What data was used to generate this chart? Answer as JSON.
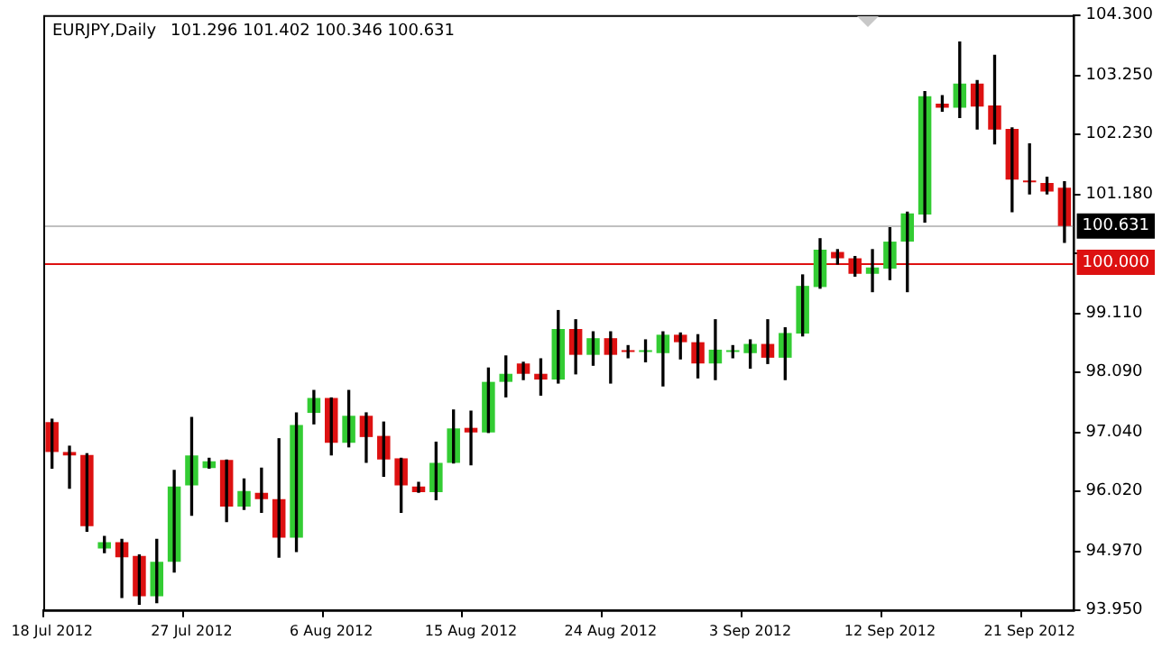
{
  "chart_data": {
    "type": "candlestick",
    "title": "EURJPY,Daily",
    "subtitle": "101.296 101.402 100.346 100.631",
    "categories": [
      "18 Jul 2012",
      null,
      null,
      null,
      null,
      null,
      null,
      null,
      "27 Jul 2012",
      null,
      null,
      null,
      null,
      null,
      null,
      null,
      "6 Aug 2012",
      null,
      null,
      null,
      null,
      null,
      null,
      null,
      "15 Aug 2012",
      null,
      null,
      null,
      null,
      null,
      null,
      null,
      "24 Aug 2012",
      null,
      null,
      null,
      null,
      null,
      null,
      null,
      "3 Sep 2012",
      null,
      null,
      null,
      null,
      null,
      null,
      null,
      "12 Sep 2012",
      null,
      null,
      null,
      null,
      null,
      null,
      null,
      "21 Sep 2012",
      null,
      null
    ],
    "ohlc": [
      [
        97.22,
        97.27,
        96.42,
        96.7
      ],
      [
        96.7,
        96.8,
        96.07,
        96.64
      ],
      [
        96.65,
        96.67,
        95.32,
        95.41
      ],
      [
        95.02,
        95.23,
        94.95,
        95.13
      ],
      [
        95.13,
        95.18,
        94.17,
        94.87
      ],
      [
        94.89,
        94.91,
        94.05,
        94.19
      ],
      [
        94.19,
        95.18,
        94.08,
        94.79
      ],
      [
        94.79,
        96.38,
        94.61,
        96.1
      ],
      [
        96.12,
        97.3,
        95.6,
        96.64
      ],
      [
        96.42,
        96.59,
        96.42,
        96.54
      ],
      [
        96.56,
        96.56,
        95.49,
        95.75
      ],
      [
        95.75,
        96.23,
        95.7,
        96.02
      ],
      [
        95.99,
        96.42,
        95.65,
        95.88
      ],
      [
        95.88,
        96.93,
        94.87,
        95.21
      ],
      [
        95.21,
        97.38,
        94.97,
        97.17
      ],
      [
        97.38,
        97.77,
        97.19,
        97.64
      ],
      [
        97.64,
        97.64,
        96.65,
        96.86
      ],
      [
        96.86,
        97.77,
        96.79,
        97.33
      ],
      [
        97.33,
        97.38,
        96.52,
        96.96
      ],
      [
        96.98,
        97.22,
        96.28,
        96.57
      ],
      [
        96.59,
        96.59,
        95.65,
        96.12
      ],
      [
        96.1,
        96.17,
        96.0,
        96.0
      ],
      [
        96.0,
        96.87,
        95.87,
        96.51
      ],
      [
        96.51,
        97.43,
        96.51,
        97.11
      ],
      [
        97.12,
        97.41,
        96.48,
        97.04
      ],
      [
        97.04,
        98.16,
        97.04,
        97.92
      ],
      [
        97.92,
        98.37,
        97.66,
        98.06
      ],
      [
        98.24,
        98.26,
        97.96,
        98.06
      ],
      [
        98.06,
        98.32,
        97.69,
        97.96
      ],
      [
        97.96,
        99.16,
        97.9,
        98.84
      ],
      [
        98.84,
        99.0,
        98.06,
        98.39
      ],
      [
        98.39,
        98.79,
        98.21,
        98.68
      ],
      [
        98.68,
        98.79,
        97.9,
        98.39
      ],
      [
        98.45,
        98.55,
        98.34,
        98.44
      ],
      [
        98.44,
        98.65,
        98.27,
        98.46
      ],
      [
        98.42,
        98.79,
        97.85,
        98.74
      ],
      [
        98.74,
        98.77,
        98.32,
        98.61
      ],
      [
        98.61,
        98.74,
        97.99,
        98.24
      ],
      [
        98.24,
        99.0,
        97.96,
        98.48
      ],
      [
        98.44,
        98.55,
        98.34,
        98.46
      ],
      [
        98.42,
        98.65,
        98.16,
        98.58
      ],
      [
        98.58,
        99.0,
        98.24,
        98.34
      ],
      [
        98.34,
        98.86,
        97.96,
        98.77
      ],
      [
        98.76,
        99.78,
        98.72,
        99.59
      ],
      [
        99.57,
        100.41,
        99.55,
        100.22
      ],
      [
        100.18,
        100.22,
        99.97,
        100.07
      ],
      [
        100.07,
        100.1,
        99.76,
        99.8
      ],
      [
        99.8,
        100.22,
        99.49,
        99.91
      ],
      [
        99.89,
        100.6,
        99.7,
        100.36
      ],
      [
        100.36,
        100.87,
        99.49,
        100.85
      ],
      [
        100.83,
        102.97,
        100.7,
        102.89
      ],
      [
        102.76,
        102.9,
        102.63,
        102.69
      ],
      [
        102.69,
        103.83,
        102.52,
        103.11
      ],
      [
        103.11,
        103.16,
        102.32,
        102.71
      ],
      [
        102.73,
        103.6,
        102.06,
        102.31
      ],
      [
        102.32,
        102.34,
        100.88,
        101.44
      ],
      [
        101.4,
        102.06,
        101.19,
        101.39
      ],
      [
        101.38,
        101.48,
        101.19,
        101.23
      ],
      [
        101.296,
        101.402,
        100.346,
        100.631
      ]
    ],
    "colors": [
      "#dd1111",
      "#dd1111",
      "#dd1111",
      "#33cc33",
      "#dd1111",
      "#dd1111",
      "#33cc33",
      "#33cc33",
      "#33cc33",
      "#33cc33",
      "#dd1111",
      "#33cc33",
      "#dd1111",
      "#dd1111",
      "#33cc33",
      "#33cc33",
      "#dd1111",
      "#33cc33",
      "#dd1111",
      "#dd1111",
      "#dd1111",
      "#dd1111",
      "#33cc33",
      "#33cc33",
      "#dd1111",
      "#33cc33",
      "#33cc33",
      "#dd1111",
      "#dd1111",
      "#33cc33",
      "#dd1111",
      "#33cc33",
      "#dd1111",
      "#dd1111",
      "#33cc33",
      "#33cc33",
      "#dd1111",
      "#dd1111",
      "#33cc33",
      "#33cc33",
      "#33cc33",
      "#dd1111",
      "#33cc33",
      "#33cc33",
      "#33cc33",
      "#dd1111",
      "#dd1111",
      "#33cc33",
      "#33cc33",
      "#33cc33",
      "#33cc33",
      "#dd1111",
      "#33cc33",
      "#dd1111",
      "#dd1111",
      "#dd1111",
      "#dd1111",
      "#dd1111",
      "#dd1111"
    ],
    "ylim": [
      93.95,
      104.3
    ],
    "yticks": [
      {
        "value": 93.95,
        "label": "93.950"
      },
      {
        "value": 94.97,
        "label": "94.970"
      },
      {
        "value": 96.02,
        "label": "96.020"
      },
      {
        "value": 97.04,
        "label": "97.040"
      },
      {
        "value": 98.09,
        "label": "98.090"
      },
      {
        "value": 99.11,
        "label": "99.110"
      },
      {
        "value": 100.16,
        "label": null
      },
      {
        "value": 101.18,
        "label": "101.180"
      },
      {
        "value": 102.23,
        "label": "102.230"
      },
      {
        "value": 103.25,
        "label": "103.250"
      },
      {
        "value": 104.3,
        "label": "104.300"
      }
    ],
    "ref_lines": [
      {
        "axis": "y",
        "value": 100.631,
        "label": "100.631",
        "color": "#c0c0c0"
      },
      {
        "axis": "y",
        "value": 100.0,
        "label": "100.000",
        "color": "#dd1111"
      }
    ],
    "grid": false,
    "legend": false
  }
}
